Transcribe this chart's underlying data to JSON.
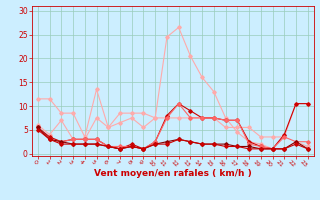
{
  "x": [
    0,
    1,
    2,
    3,
    4,
    5,
    6,
    7,
    8,
    9,
    10,
    11,
    12,
    13,
    14,
    15,
    16,
    17,
    18,
    19,
    20,
    21,
    22,
    23
  ],
  "series": [
    {
      "y": [
        11.5,
        11.5,
        8.5,
        8.5,
        3.5,
        13.5,
        5.5,
        8.5,
        8.5,
        8.5,
        7.5,
        7.5,
        7.5,
        7.5,
        7.5,
        7.5,
        5.5,
        5.5,
        5.5,
        3.5,
        3.5,
        3.5,
        10.5,
        10.5
      ],
      "color": "#ffaaaa",
      "lw": 0.8,
      "marker": "D",
      "ms": 1.8
    },
    {
      "y": [
        6.0,
        4.0,
        7.0,
        3.0,
        3.0,
        7.5,
        5.5,
        6.5,
        7.5,
        5.5,
        7.5,
        24.5,
        26.5,
        20.5,
        16.0,
        13.0,
        7.5,
        4.5,
        2.5,
        2.0,
        1.0,
        1.0,
        2.5,
        1.5
      ],
      "color": "#ffaaaa",
      "lw": 0.8,
      "marker": "D",
      "ms": 1.8
    },
    {
      "y": [
        5.5,
        3.5,
        2.5,
        3.0,
        3.0,
        3.0,
        1.5,
        1.0,
        2.0,
        1.0,
        2.5,
        8.0,
        10.5,
        9.0,
        7.5,
        7.5,
        7.0,
        7.0,
        2.5,
        1.5,
        1.0,
        4.0,
        10.5,
        10.5
      ],
      "color": "#cc0000",
      "lw": 0.8,
      "marker": "D",
      "ms": 1.8
    },
    {
      "y": [
        5.5,
        3.0,
        2.5,
        3.0,
        3.0,
        3.0,
        1.5,
        1.5,
        1.5,
        1.0,
        2.5,
        7.5,
        10.5,
        7.5,
        7.5,
        7.5,
        7.0,
        7.0,
        2.0,
        1.5,
        1.0,
        3.5,
        2.5,
        2.5
      ],
      "color": "#ff6666",
      "lw": 0.8,
      "marker": "D",
      "ms": 1.8
    },
    {
      "y": [
        5.5,
        3.0,
        2.5,
        2.0,
        2.0,
        2.0,
        1.5,
        1.0,
        1.5,
        1.0,
        2.0,
        2.5,
        3.0,
        2.5,
        2.0,
        2.0,
        2.0,
        1.5,
        1.5,
        1.0,
        1.0,
        1.0,
        2.5,
        1.0
      ],
      "color": "#880000",
      "lw": 0.8,
      "marker": "D",
      "ms": 1.8
    },
    {
      "y": [
        5.0,
        3.0,
        2.0,
        2.0,
        2.0,
        2.0,
        1.5,
        1.0,
        1.5,
        1.0,
        2.0,
        2.0,
        3.0,
        2.5,
        2.0,
        2.0,
        1.5,
        1.5,
        1.0,
        1.0,
        1.0,
        1.0,
        2.0,
        1.0
      ],
      "color": "#cc0000",
      "lw": 0.8,
      "marker": "D",
      "ms": 1.8
    }
  ],
  "xlabel": "Vent moyen/en rafales ( km/h )",
  "xlim": [
    -0.5,
    23.5
  ],
  "ylim": [
    -0.5,
    31
  ],
  "yticks": [
    0,
    5,
    10,
    15,
    20,
    25,
    30
  ],
  "xticks": [
    0,
    1,
    2,
    3,
    4,
    5,
    6,
    7,
    8,
    9,
    10,
    11,
    12,
    13,
    14,
    15,
    16,
    17,
    18,
    19,
    20,
    21,
    22,
    23
  ],
  "bg_color": "#cceeff",
  "grid_color": "#99ccbb",
  "tick_color": "#cc0000",
  "xlabel_color": "#cc0000",
  "xlabel_fontsize": 6.5,
  "ytick_fontsize": 5.5,
  "xtick_fontsize": 4.5
}
